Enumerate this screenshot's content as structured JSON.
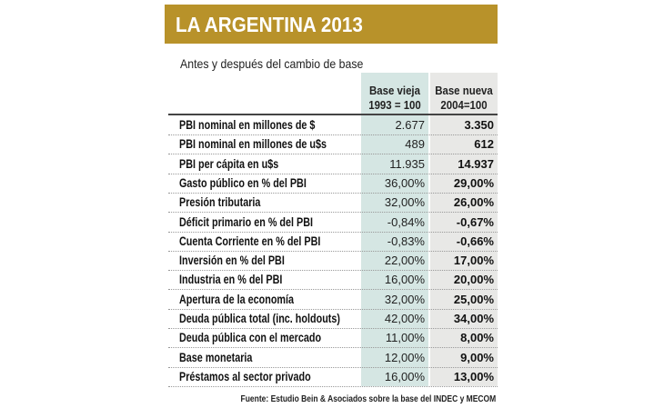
{
  "header": {
    "title": "LA ARGENTINA 2013",
    "subtitle": "Antes y después del cambio de base"
  },
  "table": {
    "columns": [
      [
        "Base vieja",
        "1993 = 100"
      ],
      [
        "Base nueva",
        "2004=100"
      ]
    ],
    "rows": [
      [
        "PBI nominal en millones de $",
        "2.677",
        "3.350"
      ],
      [
        "PBI nominal en millones de u$s",
        "489",
        "612"
      ],
      [
        "PBI per cápita en u$s",
        "11.935",
        "14.937"
      ],
      [
        "Gasto público en % del PBI",
        "36,00%",
        "29,00%"
      ],
      [
        "Presión tributaria",
        "32,00%",
        "26,00%"
      ],
      [
        "Déficit primario en % del PBI",
        "-0,84%",
        "-0,67%"
      ],
      [
        "Cuenta Corriente en % del PBI",
        "-0,83%",
        "-0,66%"
      ],
      [
        "Inversión en % del PBI",
        "22,00%",
        "17,00%"
      ],
      [
        "Industria en % del PBI",
        "16,00%",
        "20,00%"
      ],
      [
        "Apertura de la economía",
        "32,00%",
        "25,00%"
      ],
      [
        "Deuda pública total (inc. holdouts)",
        "42,00%",
        "34,00%"
      ],
      [
        "Deuda pública con el mercado",
        "11,00%",
        "8,00%"
      ],
      [
        "Base monetaria",
        "12,00%",
        "9,00%"
      ],
      [
        "Préstamos al sector privado",
        "16,00%",
        "13,00%"
      ]
    ]
  },
  "footer": {
    "source": "Fuente: Estudio Bein & Asociados sobre la base del  INDEC y MECOM"
  }
}
